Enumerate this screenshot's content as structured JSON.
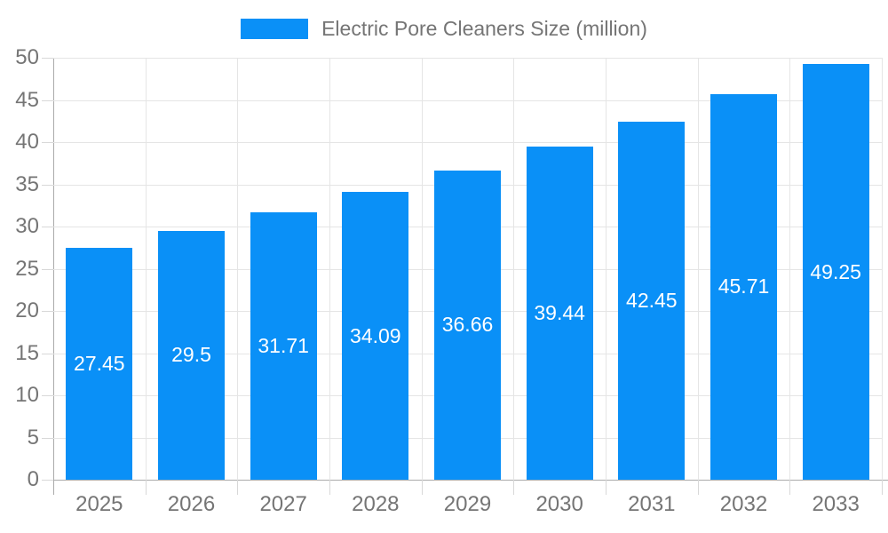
{
  "chart_data": {
    "type": "bar",
    "title": "Electric Pore Cleaners Size (million)",
    "categories": [
      "2025",
      "2026",
      "2027",
      "2028",
      "2029",
      "2030",
      "2031",
      "2032",
      "2033"
    ],
    "values": [
      27.45,
      29.5,
      31.71,
      34.09,
      36.66,
      39.44,
      42.45,
      45.71,
      49.25
    ],
    "value_labels": [
      "27.45",
      "29.5",
      "31.71",
      "34.09",
      "36.66",
      "39.44",
      "42.45",
      "45.71",
      "49.25"
    ],
    "xlabel": "",
    "ylabel": "",
    "ylim": [
      0,
      50
    ],
    "ytick_step": 5,
    "ytick_labels": [
      "0",
      "5",
      "10",
      "15",
      "20",
      "25",
      "30",
      "35",
      "40",
      "45",
      "50"
    ],
    "grid": true,
    "legend_position": "top-center",
    "colors": {
      "bar": "#0a90f7",
      "grid": "#e5e5e5",
      "axis": "#ababab",
      "minor_tick": "#d8d8d8",
      "label_text": "#757575",
      "value_text": "#ffffff",
      "background": "#ffffff"
    }
  }
}
